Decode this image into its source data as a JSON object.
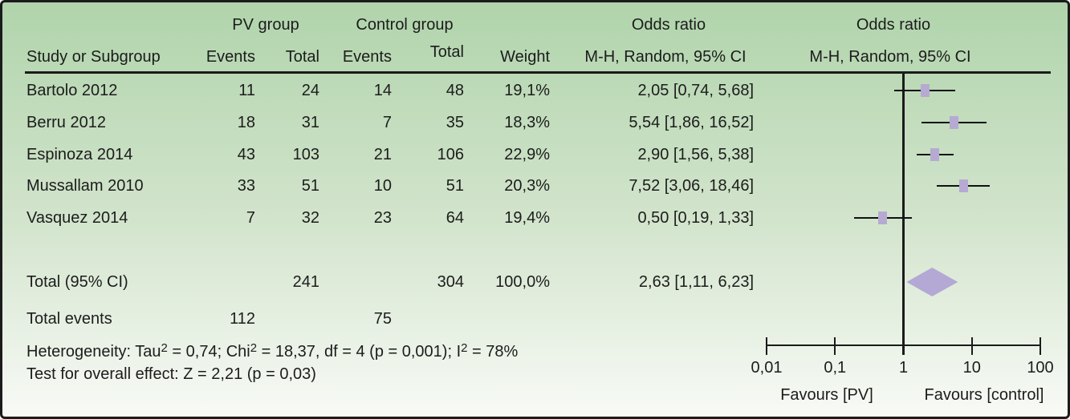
{
  "chart_data": {
    "type": "forest",
    "effect_measure": "Odds ratio, M-H, Random, 95% CI",
    "x_scale": "log10",
    "x_ticks": [
      0.01,
      0.1,
      1,
      10,
      100
    ],
    "null_line": 1,
    "studies": [
      {
        "name": "Bartolo 2012",
        "events_pv": 11,
        "total_pv": 24,
        "events_control": 14,
        "total_control": 48,
        "weight_pct": 19.1,
        "or": 2.05,
        "ci_low": 0.74,
        "ci_high": 5.68
      },
      {
        "name": "Berru 2012",
        "events_pv": 18,
        "total_pv": 31,
        "events_control": 7,
        "total_control": 35,
        "weight_pct": 18.3,
        "or": 5.54,
        "ci_low": 1.86,
        "ci_high": 16.52
      },
      {
        "name": "Espinoza 2014",
        "events_pv": 43,
        "total_pv": 103,
        "events_control": 21,
        "total_control": 106,
        "weight_pct": 22.9,
        "or": 2.9,
        "ci_low": 1.56,
        "ci_high": 5.38
      },
      {
        "name": "Mussallam 2010",
        "events_pv": 33,
        "total_pv": 51,
        "events_control": 10,
        "total_control": 51,
        "weight_pct": 20.3,
        "or": 7.52,
        "ci_low": 3.06,
        "ci_high": 18.46
      },
      {
        "name": "Vasquez 2014",
        "events_pv": 7,
        "total_pv": 32,
        "events_control": 23,
        "total_control": 64,
        "weight_pct": 19.4,
        "or": 0.5,
        "ci_low": 0.19,
        "ci_high": 1.33
      }
    ],
    "total": {
      "name": "Total (95% CI)",
      "total_pv": 241,
      "total_control": 304,
      "events_pv": 112,
      "events_control": 75,
      "weight_pct": 100.0,
      "or": 2.63,
      "ci_low": 1.11,
      "ci_high": 6.23
    },
    "heterogeneity": "Tau2 = 0,74; Chi2 = 18,37, df = 4 (p = 0,001); I2 = 78%",
    "overall_effect": "Z = 2,21 (p = 0,03)",
    "favours_left": "Favours [PV]",
    "favours_right": "Favours [control]"
  },
  "table": {
    "group_headers": {
      "pv": "PV group",
      "control": "Control group",
      "odds1": "Odds ratio",
      "odds2": "Odds ratio"
    },
    "columns": {
      "study": "Study or Subgroup",
      "events_pv": "Events",
      "total_pv": "Total",
      "events_control": "Events",
      "total_control": "Total",
      "weight": "Weight",
      "mh1": "M-H, Random, 95% CI",
      "mh2": "M-H, Random, 95% CI"
    },
    "rows": [
      {
        "study": "Bartolo 2012",
        "events_pv": "11",
        "total_pv": "24",
        "events_control": "14",
        "total_control": "48",
        "weight": "19,1%",
        "or_ci": "2,05 [0,74, 5,68]"
      },
      {
        "study": "Berru 2012",
        "events_pv": "18",
        "total_pv": "31",
        "events_control": "7",
        "total_control": "35",
        "weight": "18,3%",
        "or_ci": "5,54 [1,86, 16,52]"
      },
      {
        "study": "Espinoza 2014",
        "events_pv": "43",
        "total_pv": "103",
        "events_control": "21",
        "total_control": "106",
        "weight": "22,9%",
        "or_ci": "2,90 [1,56, 5,38]"
      },
      {
        "study": "Mussallam 2010",
        "events_pv": "33",
        "total_pv": "51",
        "events_control": "10",
        "total_control": "51",
        "weight": "20,3%",
        "or_ci": "7,52 [3,06, 18,46]"
      },
      {
        "study": "Vasquez 2014",
        "events_pv": "7",
        "total_pv": "32",
        "events_control": "23",
        "total_control": "64",
        "weight": "19,4%",
        "or_ci": "0,50 [0,19, 1,33]"
      }
    ],
    "total_row": {
      "label": "Total (95% CI)",
      "total_pv": "241",
      "total_control": "304",
      "weight": "100,0%",
      "or_ci": "2,63 [1,11, 6,23]"
    },
    "total_events": {
      "label": "Total events",
      "events_pv": "112",
      "events_control": "75"
    }
  },
  "footer": {
    "het_parts": {
      "p1": "Heterogeneity: Tau",
      "s1": "2",
      "p2": " = 0,74; Chi",
      "s2": "2",
      "p3": " = 18,37, df = 4 (p = 0,001); I",
      "s3": "2",
      "p4": " = 78%"
    },
    "overall": "Test for overall effect: Z = 2,21 (p = 0,03)"
  },
  "axis": {
    "tick_labels": [
      "0,01",
      "0,1",
      "1",
      "10",
      "100"
    ],
    "favours_left": "Favours [PV]",
    "favours_right": "Favours [control]"
  },
  "colors": {
    "marker": "#b6aad2",
    "diamond": "#b4a8d4",
    "line": "#1b1b1b",
    "background_top": "#b0d4ab",
    "background_mid": "#d2e4cc",
    "background_bottom": "#f8faf6"
  }
}
